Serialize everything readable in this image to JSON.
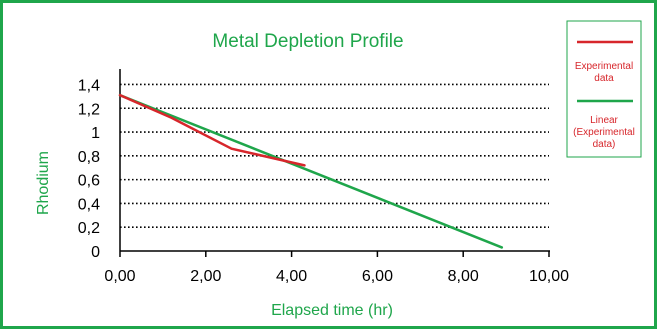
{
  "colors": {
    "frame": "#1fa64b",
    "title": "#1fa64b",
    "axis_title": "#1fa64b",
    "experimental": "#d7262b",
    "linear": "#1fa64b",
    "grid": "#000000"
  },
  "chart_data": {
    "type": "line",
    "title": "Metal Depletion Profile",
    "xlabel": "Elapsed time (hr)",
    "ylabel": "Rhodium",
    "xlim": [
      0,
      10
    ],
    "ylim": [
      0,
      1.4
    ],
    "x_ticks": [
      "0,00",
      "2,00",
      "4,00",
      "6,00",
      "8,00",
      "10,00"
    ],
    "y_ticks": [
      "0",
      "0,2",
      "0,4",
      "0,6",
      "0,8",
      "1",
      "1,2",
      "1,4"
    ],
    "grid": "horizontal dotted",
    "legend_position": "right",
    "series": [
      {
        "name": "Experimental data",
        "x": [
          0,
          1.2,
          2.6,
          4.3
        ],
        "y": [
          1.31,
          1.12,
          0.86,
          0.72
        ]
      },
      {
        "name": "Linear (Experimental data)",
        "x": [
          0,
          8.9
        ],
        "y": [
          1.31,
          0.03
        ]
      }
    ],
    "legend": [
      {
        "label_lines": [
          "Experimental",
          "data"
        ]
      },
      {
        "label_lines": [
          "Linear",
          "(Experimental",
          "data)"
        ]
      }
    ]
  }
}
